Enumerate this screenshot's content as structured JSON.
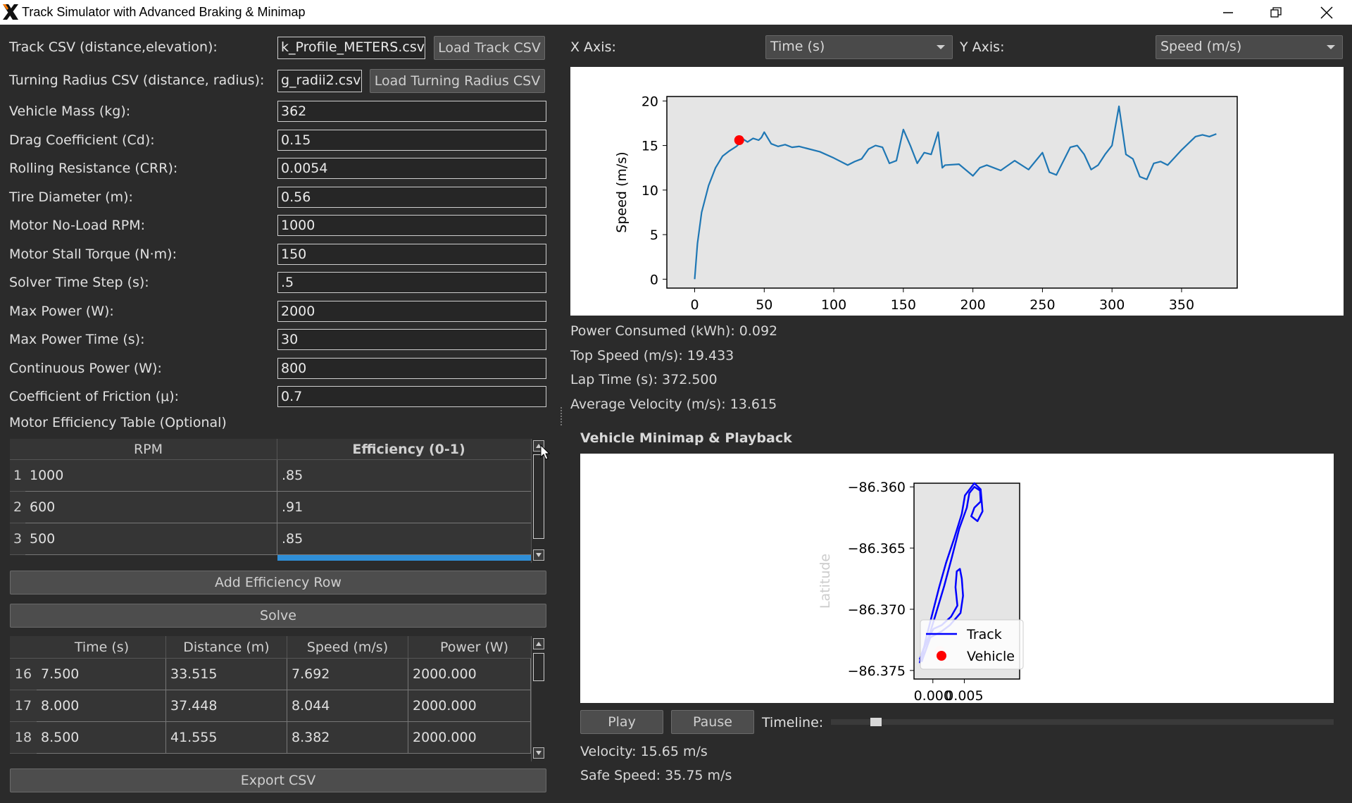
{
  "window": {
    "title": "Track Simulator with Advanced Braking & Minimap",
    "app_icon": "x-logo-icon",
    "controls": [
      "minimize-icon",
      "restore-icon",
      "close-icon"
    ]
  },
  "left": {
    "track_csv_label": "Track CSV (distance,elevation):",
    "track_csv_value": "k_Profile_METERS.csv",
    "load_track_button": "Load Track CSV",
    "radius_csv_label": "Turning Radius CSV (distance, radius):",
    "radius_csv_value": "g_radii2.csv",
    "load_radius_button": "Load Turning Radius CSV",
    "params": [
      {
        "label": "Vehicle Mass (kg):",
        "value": "362"
      },
      {
        "label": "Drag Coefficient (Cd):",
        "value": "0.15"
      },
      {
        "label": "Rolling Resistance (CRR):",
        "value": "0.0054"
      },
      {
        "label": "Tire Diameter (m):",
        "value": "0.56"
      },
      {
        "label": "Motor No-Load RPM:",
        "value": "1000"
      },
      {
        "label": "Motor Stall Torque (N·m):",
        "value": "150"
      },
      {
        "label": "Solver Time Step (s):",
        "value": ".5"
      },
      {
        "label": "Max Power (W):",
        "value": "2000"
      },
      {
        "label": "Max Power Time (s):",
        "value": "30"
      },
      {
        "label": "Continuous Power (W):",
        "value": "800"
      },
      {
        "label": "Coefficient of Friction (μ):",
        "value": "0.7"
      }
    ],
    "eff_table_label": "Motor Efficiency Table (Optional)",
    "eff_table": {
      "headers": [
        "RPM",
        "Efficiency (0-1)"
      ],
      "rows": [
        {
          "idx": "1",
          "rpm": "1000",
          "eff": ".85"
        },
        {
          "idx": "2",
          "rpm": "600",
          "eff": ".91"
        },
        {
          "idx": "3",
          "rpm": "500",
          "eff": ".85"
        }
      ]
    },
    "add_eff_button": "Add Efficiency Row",
    "solve_button": "Solve",
    "results_table": {
      "headers": [
        "Time (s)",
        "Distance (m)",
        "Speed (m/s)",
        "Power (W)"
      ],
      "rows": [
        {
          "idx": "16",
          "cells": [
            "7.500",
            "33.515",
            "7.692",
            "2000.000"
          ]
        },
        {
          "idx": "17",
          "cells": [
            "8.000",
            "37.448",
            "8.044",
            "2000.000"
          ]
        },
        {
          "idx": "18",
          "cells": [
            "8.500",
            "41.555",
            "8.382",
            "2000.000"
          ]
        }
      ]
    },
    "export_button": "Export CSV"
  },
  "right": {
    "x_axis_label": "X Axis:",
    "x_axis_value": "Time (s)",
    "y_axis_label": "Y Axis:",
    "y_axis_value": "Speed (m/s)",
    "stats": {
      "power": "Power Consumed (kWh): 0.092",
      "top_speed": "Top Speed (m/s): 19.433",
      "lap_time": "Lap Time (s): 372.500",
      "avg_velocity": "Average Velocity (m/s): 13.615"
    },
    "minimap_title": "Vehicle Minimap & Playback",
    "play_button": "Play",
    "pause_button": "Pause",
    "timeline_label": "Timeline:",
    "timeline_position": 0.09,
    "velocity": "Velocity: 15.65 m/s",
    "safe_speed": "Safe Speed: 35.75 m/s"
  },
  "chart_data": [
    {
      "type": "line",
      "title": "",
      "xlabel": "",
      "ylabel": "Speed (m/s)",
      "xlim": [
        -20,
        390
      ],
      "ylim": [
        -1,
        20.5
      ],
      "xticks": [
        "0",
        "50",
        "100",
        "150",
        "200",
        "250",
        "300",
        "350"
      ],
      "yticks": [
        "0",
        "5",
        "10",
        "15",
        "20"
      ],
      "series": [
        {
          "color": "#1f77b4",
          "x": [
            0,
            2,
            5,
            10,
            15,
            20,
            25,
            30,
            32,
            35,
            38,
            42,
            46,
            48,
            50,
            55,
            60,
            65,
            70,
            75,
            80,
            90,
            100,
            110,
            115,
            120,
            125,
            130,
            135,
            140,
            145,
            150,
            155,
            160,
            165,
            170,
            175,
            178,
            180,
            190,
            200,
            205,
            210,
            220,
            230,
            240,
            250,
            255,
            260,
            270,
            275,
            280,
            285,
            290,
            295,
            300,
            305,
            310,
            315,
            320,
            325,
            330,
            335,
            340,
            350,
            360,
            365,
            370,
            375
          ],
          "y": [
            0,
            4,
            7.5,
            10.5,
            12.5,
            13.8,
            14.4,
            14.9,
            15.2,
            15.7,
            15.4,
            15.8,
            15.6,
            15.9,
            16.5,
            15.2,
            14.9,
            15.1,
            14.8,
            14.9,
            14.7,
            14.3,
            13.6,
            12.8,
            13.2,
            13.5,
            14.6,
            15,
            14.8,
            13,
            13.3,
            16.8,
            15,
            13,
            14.2,
            14,
            16.5,
            12.5,
            12.8,
            12.9,
            11.6,
            12.5,
            12.8,
            12.2,
            13.3,
            12.3,
            14.2,
            12,
            11.7,
            14.8,
            15,
            14,
            12.3,
            12.8,
            14,
            15,
            19.4,
            14,
            13.5,
            11.5,
            11.2,
            13,
            13.2,
            12.8,
            14.5,
            16,
            16.2,
            16,
            16.3
          ]
        }
      ],
      "marker": {
        "x": 32,
        "y": 15.6,
        "color": "#ff0000"
      }
    },
    {
      "type": "line",
      "title": "",
      "xlabel": "",
      "ylabel": "Latitude",
      "xlim": [
        -0.003,
        0.0138
      ],
      "ylim": [
        -86.3757,
        -86.3597
      ],
      "xticks": [
        "0.000",
        "0.005"
      ],
      "yticks": [
        "−86.360",
        "−86.365",
        "−86.370",
        "−86.375"
      ],
      "legend": {
        "entries": [
          "Track",
          "Vehicle"
        ],
        "placement": "lower-right"
      },
      "series": [
        {
          "name": "Track",
          "color": "#0000ff",
          "points": [
            [
              -0.0021,
              -86.3744
            ],
            [
              -0.0018,
              -86.3737
            ],
            [
              -0.0008,
              -86.3725
            ],
            [
              0.0004,
              -86.3705
            ],
            [
              0.0018,
              -86.3681
            ],
            [
              0.003,
              -86.3658
            ],
            [
              0.0042,
              -86.3634
            ],
            [
              0.0054,
              -86.3617
            ],
            [
              0.0058,
              -86.3605
            ],
            [
              0.0066,
              -86.36
            ],
            [
              0.0075,
              -86.3603
            ],
            [
              0.0076,
              -86.3612
            ],
            [
              0.0066,
              -86.3617
            ],
            [
              0.0061,
              -86.3624
            ],
            [
              0.0071,
              -86.3628
            ],
            [
              0.0079,
              -86.362
            ],
            [
              0.0076,
              -86.3602
            ],
            [
              0.0066,
              -86.3597
            ],
            [
              0.0051,
              -86.3607
            ],
            [
              0.0046,
              -86.3622
            ],
            [
              0.0034,
              -86.3642
            ],
            [
              0.0021,
              -86.3662
            ],
            [
              0.001,
              -86.3682
            ],
            [
              0,
              -86.3702
            ],
            [
              -0.0012,
              -86.3726
            ],
            [
              -0.0018,
              -86.3742
            ]
          ]
        },
        {
          "name": "Track",
          "color": "#0000ff",
          "points": [
            [
              -0.0018,
              -86.3743
            ],
            [
              -0.0004,
              -86.3723
            ],
            [
              0.0014,
              -86.3718
            ],
            [
              0.0027,
              -86.3713
            ],
            [
              0.0044,
              -86.3703
            ],
            [
              0.0048,
              -86.3689
            ],
            [
              0.0046,
              -86.3675
            ],
            [
              0.0043,
              -86.3667
            ],
            [
              0.0038,
              -86.3669
            ],
            [
              0.0036,
              -86.3682
            ],
            [
              0.0039,
              -86.3697
            ],
            [
              0.0029,
              -86.3706
            ],
            [
              0.0014,
              -86.3713
            ],
            [
              0.0001,
              -86.3716
            ],
            [
              -0.0012,
              -86.3728
            ],
            [
              -0.0021,
              -86.3741
            ]
          ]
        },
        {
          "name": "Vehicle",
          "color": "#ff0000",
          "points": [
            [
              0.0011,
              -86.3734
            ]
          ]
        }
      ]
    }
  ]
}
